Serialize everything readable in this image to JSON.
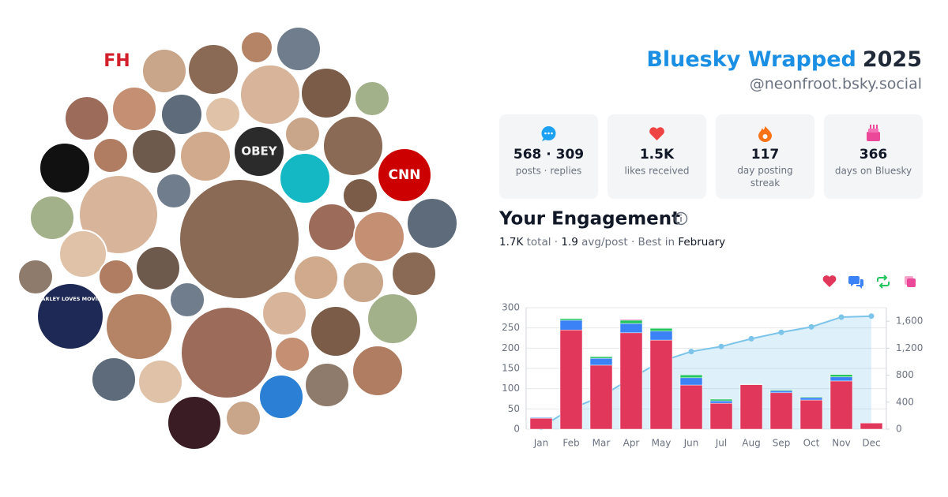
{
  "header": {
    "title": "Bluesky Wrapped",
    "year": "2025",
    "handle": "@neonfroot.bsky.social"
  },
  "stats": [
    {
      "value": "568 · 309",
      "label": "posts · replies"
    },
    {
      "value": "1.5K",
      "label": "likes received"
    },
    {
      "value": "117",
      "label": "day posting streak"
    },
    {
      "value": "366",
      "label": "days on Bluesky"
    }
  ],
  "engagement": {
    "title": "Your Engagement",
    "summary": [
      "1.7K",
      " total · ",
      "1.9",
      " avg/post · Best in ",
      "February"
    ]
  },
  "avatars": [
    {
      "label": "FH"
    },
    {
      "label": "CNN"
    },
    {
      "label": "OBEY"
    },
    {
      "label": "MARLEY LOVES MOVIES"
    }
  ],
  "chart_data": {
    "type": "bar",
    "stacked": true,
    "categories": [
      "Jan",
      "Feb",
      "Mar",
      "Apr",
      "May",
      "Jun",
      "Jul",
      "Aug",
      "Sep",
      "Oct",
      "Nov",
      "Dec"
    ],
    "series": [
      {
        "color": "#e0375a",
        "values": [
          27,
          245,
          158,
          238,
          220,
          109,
          64,
          110,
          90,
          72,
          119,
          15
        ]
      },
      {
        "color": "#3b82f6",
        "values": [
          2,
          24,
          17,
          23,
          22,
          18,
          6,
          0,
          5,
          6,
          10,
          0
        ]
      },
      {
        "color": "#22c55e",
        "values": [
          1,
          4,
          4,
          8,
          7,
          7,
          4,
          1,
          2,
          2,
          6,
          0
        ]
      },
      {
        "color": "#ec4899",
        "values": [
          0,
          0,
          0,
          2,
          0,
          0,
          0,
          0,
          0,
          0,
          0,
          0
        ]
      },
      {
        "type": "line",
        "axis": "y2",
        "color": "#7cc4ea",
        "values": [
          30,
          303,
          483,
          755,
          1005,
          1150,
          1225,
          1340,
          1435,
          1515,
          1660,
          1675
        ]
      }
    ],
    "ylim": [
      0,
      300
    ],
    "yticks": [
      0,
      50,
      100,
      150,
      200,
      250,
      300
    ],
    "y2lim": [
      0,
      1800
    ],
    "y2ticks": [
      0,
      400,
      800,
      {
        "value": 1200,
        "label": "1,200"
      },
      {
        "value": 1600,
        "label": "1,600"
      }
    ],
    "grid": true
  }
}
